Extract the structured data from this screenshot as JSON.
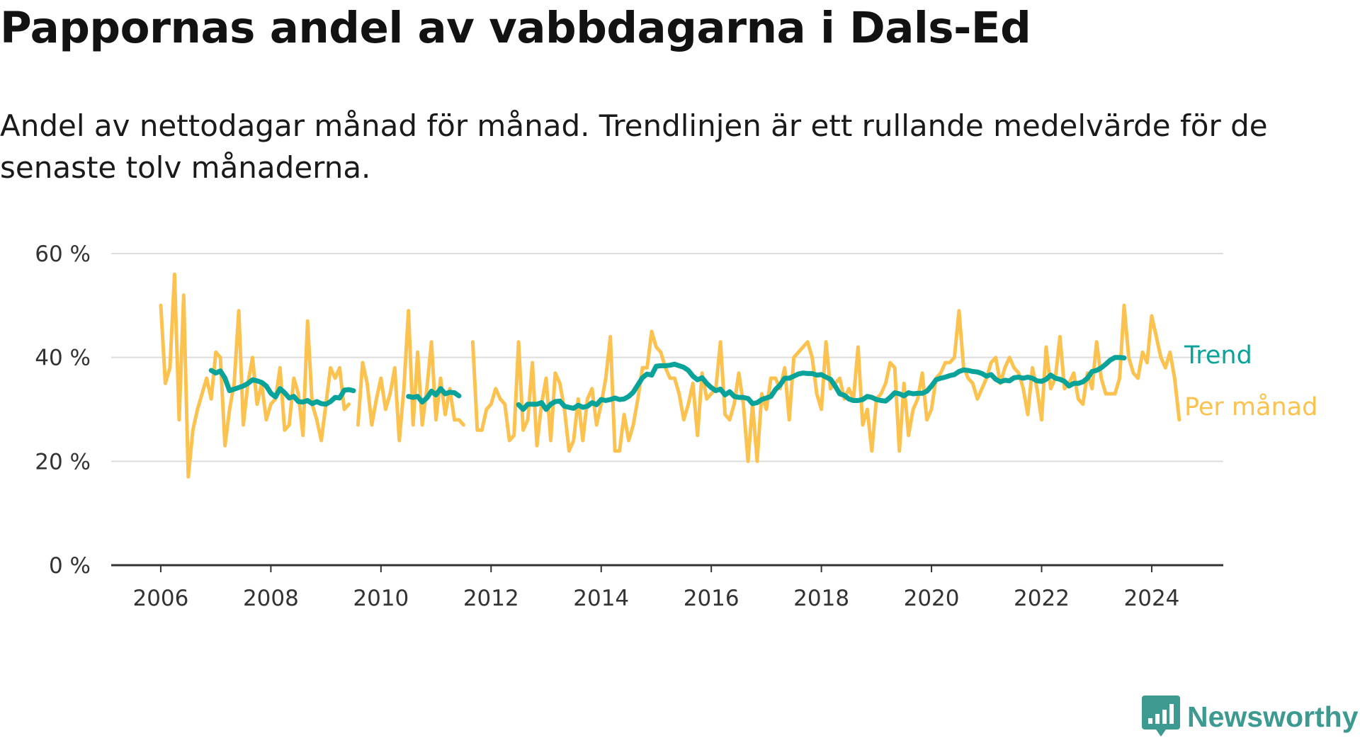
{
  "title": "Pappornas andel av vabbdagarna i Dals-Ed",
  "subtitle": "Andel av nettodagar månad för månad. Trendlinjen är ett rullande medelvärde för de senaste tolv månaderna.",
  "brand": "Newsworthy",
  "colors": {
    "per_month": "#fcc24f",
    "trend": "#0aa39a",
    "grid": "#dddddd",
    "axis": "#333333",
    "brand": "#3d9a90"
  },
  "chart_data": {
    "type": "line",
    "ylim": [
      0,
      60
    ],
    "y_ticks": [
      0,
      20,
      40,
      60
    ],
    "y_tick_labels": [
      "0 %",
      "20 %",
      "40 %",
      "60 %"
    ],
    "x_ticks": [
      2006,
      2008,
      2010,
      2012,
      2014,
      2016,
      2018,
      2020,
      2022,
      2024
    ],
    "x_tick_labels": [
      "2006",
      "2008",
      "2010",
      "2012",
      "2014",
      "2016",
      "2018",
      "2020",
      "2022",
      "2024"
    ],
    "xlim": [
      2005.1,
      2025.3
    ],
    "grid": "horizontal",
    "legend": "direct labels at line ends",
    "series": [
      {
        "name": "Per månad",
        "x_start": 2006.0,
        "step": 0.08333,
        "values": [
          50,
          35,
          38,
          56,
          28,
          52,
          17,
          26,
          30,
          33,
          36,
          32,
          41,
          40,
          23,
          30,
          35,
          49,
          27,
          35,
          40,
          31,
          35,
          28,
          31,
          32,
          38,
          26,
          27,
          36,
          33,
          25,
          47,
          31,
          28,
          24,
          31,
          38,
          36,
          38,
          30,
          31,
          null,
          27,
          39,
          35,
          27,
          32,
          36,
          30,
          33,
          38,
          24,
          34,
          49,
          27,
          41,
          27,
          34,
          43,
          28,
          36,
          29,
          34,
          28,
          28,
          27,
          null,
          43,
          26,
          26,
          30,
          31,
          34,
          32,
          31,
          24,
          25,
          43,
          26,
          28,
          39,
          23,
          31,
          36,
          24,
          37,
          35,
          30,
          22,
          24,
          32,
          24,
          32,
          34,
          27,
          31,
          36,
          44,
          22,
          22,
          29,
          24,
          27,
          32,
          38,
          38,
          45,
          42,
          41,
          38,
          36,
          36,
          33,
          28,
          31,
          35,
          25,
          37,
          32,
          33,
          34,
          43,
          29,
          28,
          31,
          37,
          31,
          20,
          31,
          20,
          33,
          30,
          36,
          36,
          34,
          38,
          28,
          40,
          41,
          42,
          43,
          40,
          33,
          30,
          43,
          34,
          35,
          36,
          32,
          34,
          32,
          42,
          27,
          30,
          22,
          32,
          33,
          35,
          39,
          38,
          22,
          35,
          25,
          30,
          32,
          37,
          28,
          30,
          36,
          37,
          39,
          39,
          40,
          49,
          38,
          36,
          35,
          32,
          34,
          36,
          39,
          40,
          35,
          38,
          40,
          38,
          37,
          34,
          29,
          38,
          34,
          28,
          42,
          34,
          36,
          44,
          34,
          35,
          37,
          32,
          31,
          37,
          34,
          43,
          36,
          33,
          33,
          33,
          36,
          50,
          40,
          37,
          36,
          41,
          39,
          48,
          44,
          40,
          38,
          41,
          36,
          28
        ]
      },
      {
        "name": "Trend",
        "x_start": 2006.0,
        "step": 0.08333,
        "values": [
          null,
          null,
          null,
          null,
          null,
          null,
          null,
          null,
          null,
          null,
          null,
          37.5,
          37,
          37.4,
          36,
          33.6,
          33.9,
          34.2,
          34.5,
          35,
          35.7,
          35.5,
          35.2,
          34.5,
          33.1,
          32.4,
          34,
          33.2,
          32.2,
          32.5,
          31.5,
          31.4,
          31.7,
          31.1,
          31.5,
          31.1,
          31,
          31.5,
          32.3,
          32.2,
          33.7,
          33.8,
          33.6,
          null,
          null,
          null,
          null,
          null,
          null,
          null,
          null,
          null,
          null,
          null,
          32.5,
          32.3,
          32.5,
          31.4,
          32.2,
          33.5,
          32.8,
          34,
          33,
          33.3,
          33.2,
          32.6,
          null,
          null,
          null,
          null,
          null,
          null,
          null,
          null,
          null,
          null,
          null,
          null,
          30.9,
          30,
          31,
          31,
          31,
          31.3,
          30,
          31,
          31.5,
          31.6,
          30.6,
          30.4,
          30.2,
          30.8,
          30.4,
          30.6,
          31.3,
          30.9,
          31.9,
          31.7,
          31.9,
          32.2,
          31.9,
          32,
          32.5,
          33.3,
          34.7,
          36.1,
          36.8,
          36.6,
          38.3,
          38.4,
          38.4,
          38.5,
          38.7,
          38.4,
          38.1,
          37.5,
          36.4,
          35.7,
          36.1,
          35,
          34.2,
          33.6,
          33.9,
          32.8,
          33.4,
          32.5,
          32.3,
          32.3,
          32.1,
          31.1,
          31.3,
          31.9,
          32.2,
          32.5,
          33.8,
          34.7,
          36,
          36,
          36.4,
          36.8,
          37,
          36.9,
          36.9,
          36.6,
          36.7,
          36.2,
          35.8,
          34.5,
          33,
          32.7,
          32,
          31.7,
          31.7,
          31.9,
          32.5,
          32.3,
          31.9,
          31.7,
          31.6,
          32.3,
          33.2,
          33,
          32.6,
          33.2,
          33,
          33.1,
          33.1,
          33.5,
          34.5,
          35.7,
          36,
          36.2,
          36.5,
          36.7,
          37.3,
          37.6,
          37.5,
          37.3,
          37.2,
          36.9,
          36.4,
          36.7,
          35.8,
          35.3,
          35.6,
          35.5,
          36.1,
          36.2,
          36,
          36.2,
          36,
          35.5,
          35.4,
          35.8,
          36.6,
          36,
          35.8,
          35.4,
          34.5,
          35,
          35,
          35.3,
          36,
          37.3,
          37.5,
          38,
          38.7,
          39.5,
          40,
          40,
          39.9
        ]
      }
    ]
  }
}
